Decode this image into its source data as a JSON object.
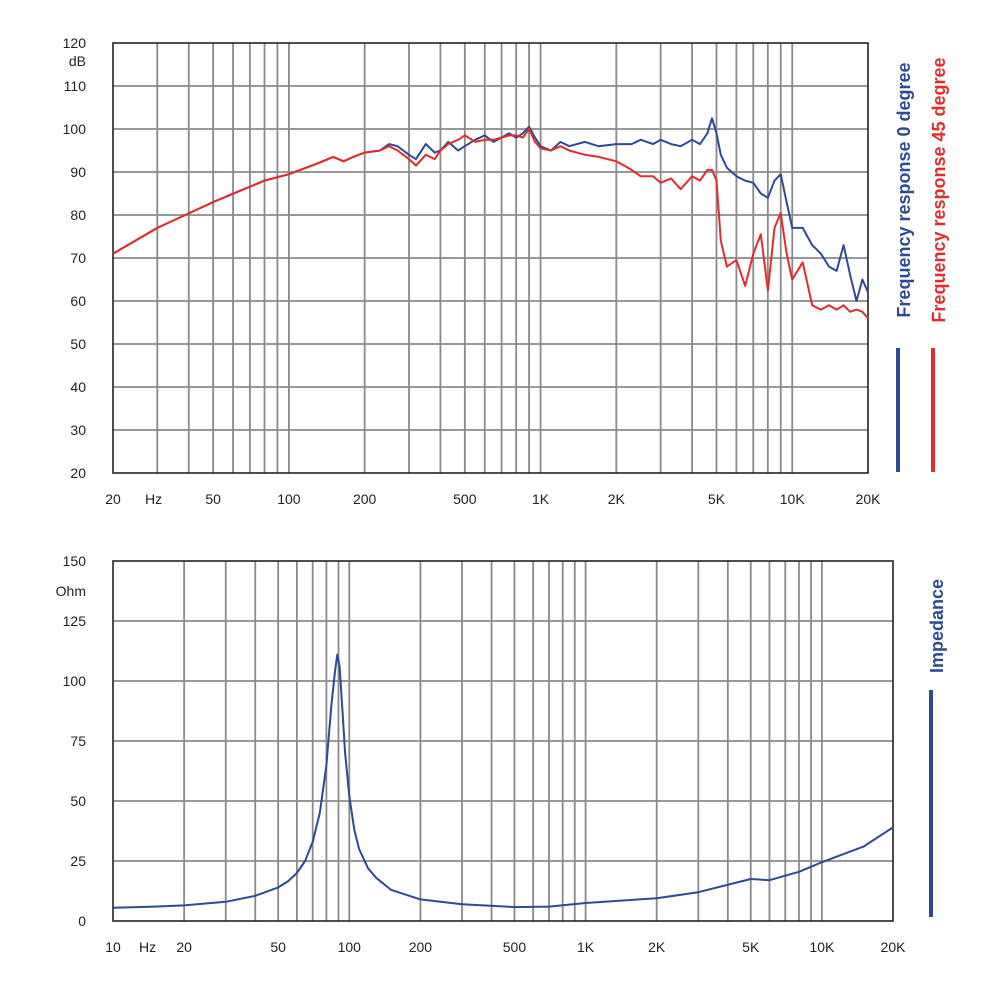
{
  "colors": {
    "grid": "#8a8a8a",
    "frame": "#222222",
    "blue": "#2e4a95",
    "red": "#e32b2b"
  },
  "chart_data": [
    {
      "type": "line",
      "x_scale": "log",
      "xlim": [
        20,
        20000
      ],
      "ylim": [
        20,
        120
      ],
      "ylabel": "dB",
      "xlabel": "Hz",
      "grid": true,
      "legend_position": "right",
      "x_ticks": [
        {
          "value": 20,
          "label": "20"
        },
        {
          "value": 50,
          "label": "50"
        },
        {
          "value": 100,
          "label": "100"
        },
        {
          "value": 200,
          "label": "200"
        },
        {
          "value": 500,
          "label": "500"
        },
        {
          "value": 1000,
          "label": "1K"
        },
        {
          "value": 2000,
          "label": "2K"
        },
        {
          "value": 5000,
          "label": "5K"
        },
        {
          "value": 10000,
          "label": "10K"
        },
        {
          "value": 20000,
          "label": "20K"
        }
      ],
      "y_ticks": [
        20,
        30,
        40,
        50,
        60,
        70,
        80,
        90,
        100,
        110,
        120
      ],
      "series": [
        {
          "name": "Frequency response 0 degree",
          "color": "#2e4a95",
          "x": [
            20,
            30,
            50,
            80,
            100,
            130,
            150,
            165,
            180,
            200,
            230,
            250,
            270,
            300,
            320,
            350,
            380,
            400,
            430,
            470,
            500,
            550,
            600,
            650,
            700,
            750,
            800,
            850,
            900,
            950,
            1000,
            1100,
            1200,
            1300,
            1500,
            1700,
            2000,
            2300,
            2500,
            2800,
            3000,
            3300,
            3600,
            4000,
            4300,
            4600,
            4800,
            5000,
            5200,
            5500,
            6000,
            6500,
            7000,
            7500,
            8000,
            8500,
            9000,
            9500,
            10000,
            11000,
            12000,
            13000,
            14000,
            15000,
            16000,
            17000,
            18000,
            19000,
            20000
          ],
          "y": [
            71,
            77,
            83,
            88,
            89.5,
            92,
            93.5,
            92.5,
            93.5,
            94.5,
            95,
            96.5,
            96,
            94,
            93,
            96.5,
            94.5,
            95,
            97,
            95,
            96,
            97.5,
            98.5,
            97,
            98,
            99,
            98,
            99,
            100.5,
            98,
            96,
            95,
            97,
            96,
            97,
            96,
            96.5,
            96.5,
            97.5,
            96.5,
            97.5,
            96.5,
            96,
            97.5,
            96.5,
            99,
            102.5,
            99,
            94,
            91,
            89,
            88,
            87.5,
            85,
            84,
            88,
            89.5,
            83,
            77,
            77,
            73,
            71,
            68,
            67,
            73,
            66,
            60,
            65,
            62
          ]
        },
        {
          "name": "Frequency response 45 degree",
          "color": "#e32b2b",
          "x": [
            20,
            30,
            50,
            80,
            100,
            130,
            150,
            165,
            180,
            200,
            230,
            250,
            270,
            300,
            320,
            350,
            380,
            400,
            430,
            470,
            500,
            550,
            600,
            650,
            700,
            750,
            800,
            850,
            900,
            950,
            1000,
            1100,
            1200,
            1300,
            1500,
            1700,
            2000,
            2300,
            2500,
            2800,
            3000,
            3300,
            3600,
            4000,
            4300,
            4600,
            4800,
            5000,
            5200,
            5500,
            6000,
            6500,
            7000,
            7500,
            8000,
            8500,
            9000,
            9500,
            10000,
            11000,
            12000,
            13000,
            14000,
            15000,
            16000,
            17000,
            18000,
            19000,
            20000
          ],
          "y": [
            71,
            77,
            83,
            88,
            89.5,
            92,
            93.5,
            92.5,
            93.5,
            94.5,
            95,
            96,
            95,
            93,
            91.5,
            94,
            93,
            95,
            96.5,
            97.5,
            98.5,
            97,
            97.5,
            97.5,
            98,
            98.5,
            98.5,
            98,
            100,
            97,
            95.5,
            95,
            96,
            95,
            94,
            93.5,
            92.5,
            90.5,
            89,
            89,
            87.5,
            88.5,
            86,
            89,
            88,
            90.5,
            90.5,
            88,
            74,
            68,
            69.5,
            63.5,
            71,
            75.5,
            62.5,
            77,
            80.5,
            71,
            65,
            69,
            59,
            58,
            59,
            58,
            59,
            57.5,
            58,
            57.5,
            56
          ]
        }
      ]
    },
    {
      "type": "line",
      "x_scale": "log",
      "xlim": [
        10,
        20000
      ],
      "ylim": [
        0,
        150
      ],
      "ylabel": "Ohm",
      "xlabel": "Hz",
      "grid": true,
      "legend_position": "right",
      "x_ticks": [
        {
          "value": 10,
          "label": "10"
        },
        {
          "value": 20,
          "label": "20"
        },
        {
          "value": 50,
          "label": "50"
        },
        {
          "value": 100,
          "label": "100"
        },
        {
          "value": 200,
          "label": "200"
        },
        {
          "value": 500,
          "label": "500"
        },
        {
          "value": 1000,
          "label": "1K"
        },
        {
          "value": 2000,
          "label": "2K"
        },
        {
          "value": 5000,
          "label": "5K"
        },
        {
          "value": 10000,
          "label": "10K"
        },
        {
          "value": 20000,
          "label": "20K"
        }
      ],
      "y_ticks": [
        0,
        25,
        50,
        75,
        100,
        125,
        150
      ],
      "series": [
        {
          "name": "Impedance",
          "color": "#2e4a95",
          "x": [
            10,
            15,
            20,
            30,
            40,
            50,
            55,
            60,
            65,
            70,
            75,
            80,
            84,
            87,
            89,
            91,
            93,
            96,
            100,
            105,
            110,
            120,
            130,
            150,
            200,
            300,
            500,
            700,
            1000,
            2000,
            3000,
            5000,
            6000,
            8000,
            10000,
            15000,
            20000
          ],
          "y": [
            5.5,
            6,
            6.5,
            8,
            10.5,
            14,
            16.5,
            20,
            25,
            33,
            45,
            65,
            90,
            104,
            111,
            106,
            92,
            70,
            52,
            38,
            30,
            22,
            18,
            13,
            9,
            7,
            5.8,
            6,
            7.5,
            9.5,
            12,
            17.5,
            17,
            20.5,
            24.5,
            31,
            39
          ]
        }
      ]
    }
  ]
}
